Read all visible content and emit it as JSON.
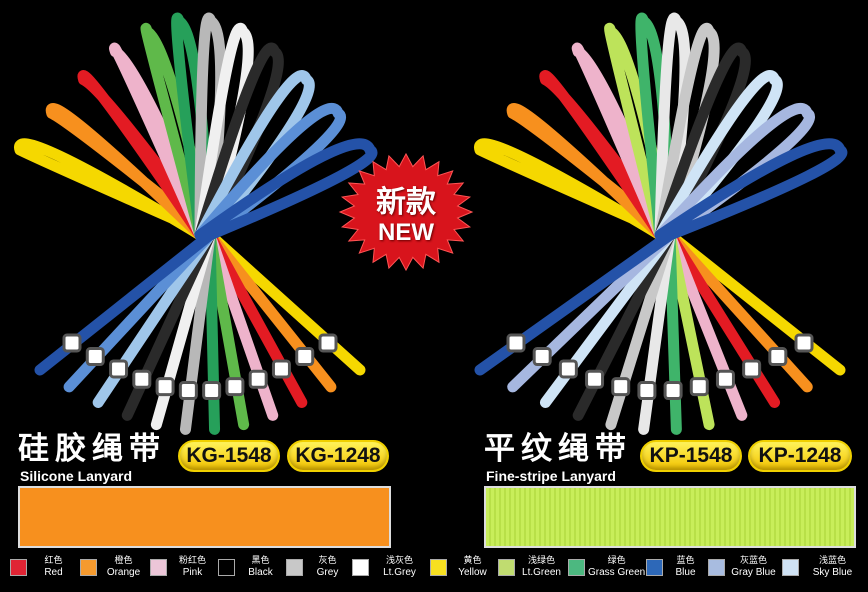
{
  "badge": {
    "cn": "新款",
    "en": "NEW",
    "color": "#d8141c"
  },
  "left": {
    "title_cn": "硅胶绳带",
    "title_en": "Silicone Lanyard",
    "codes": [
      "KG-1548",
      "KG-1248"
    ],
    "sample_color": "#f7901e",
    "lanyard_colors": [
      "#f5d800",
      "#f7901e",
      "#e31b23",
      "#eeb3cb",
      "#5fb94a",
      "#26a05a",
      "#b8b8b8",
      "#f0f0f0",
      "#2a2a2a",
      "#9fc6ea",
      "#5b8fd6",
      "#2452a8"
    ]
  },
  "right": {
    "title_cn": "平纹绳带",
    "title_en": "Fine-stripe Lanyard",
    "codes": [
      "KP-1548",
      "KP-1248"
    ],
    "sample_color": "#c8ee5a",
    "lanyard_colors": [
      "#f5d800",
      "#f7901e",
      "#e31b23",
      "#eeb3cb",
      "#bde35a",
      "#3fb46a",
      "#e8e8e8",
      "#c8c8c8",
      "#2a2a2a",
      "#cfe4f6",
      "#a6b7e0",
      "#2452a8"
    ]
  },
  "legend": [
    {
      "cn": "红色",
      "en": "Red",
      "color": "#e02434"
    },
    {
      "cn": "橙色",
      "en": "Orange",
      "color": "#f59a2e"
    },
    {
      "cn": "粉红色",
      "en": "Pink",
      "color": "#ecc6d8"
    },
    {
      "cn": "黑色",
      "en": "Black",
      "color": "#000000"
    },
    {
      "cn": "灰色",
      "en": "Grey",
      "color": "#c8c8c8"
    },
    {
      "cn": "浅灰色",
      "en": "Lt.Grey",
      "color": "#ffffff"
    },
    {
      "cn": "黄色",
      "en": "Yellow",
      "color": "#f7e020"
    },
    {
      "cn": "浅绿色",
      "en": "Lt.Green",
      "color": "#c0dc70"
    },
    {
      "cn": "绿色",
      "en": "Grass Green",
      "color": "#4cb880"
    },
    {
      "cn": "蓝色",
      "en": "Blue",
      "color": "#2d68b8"
    },
    {
      "cn": "灰蓝色",
      "en": "Gray Blue",
      "color": "#a8bce0"
    },
    {
      "cn": "浅蓝色",
      "en": "Sky Blue",
      "color": "#cfe2f4"
    }
  ]
}
